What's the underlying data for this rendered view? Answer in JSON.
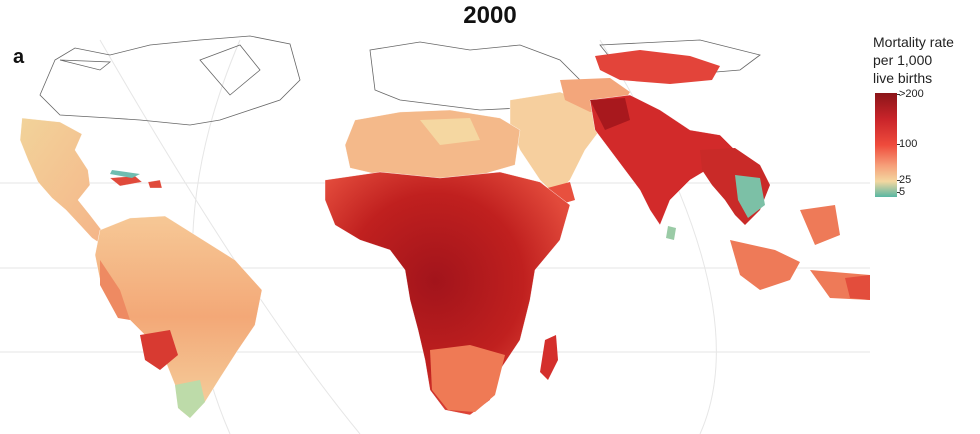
{
  "title": "2000",
  "panel_label": "a",
  "legend": {
    "title_lines": [
      "Mortality rate",
      "per 1,000",
      "live births"
    ],
    "ticks": [
      ">200",
      "100",
      "25",
      "5"
    ],
    "colors": [
      "#8b1519",
      "#c9242a",
      "#ef4b3c",
      "#f6a07a",
      "#f3d7a0",
      "#58b7a3"
    ]
  },
  "map_colors": {
    "africa_high": "#a8161c",
    "africa_mid": "#cf2b2b",
    "north_africa": "#f3b98a",
    "south_asia": "#d22a2a",
    "latin_america": "#f6bf91",
    "southeast_asia": "#ec6a4e",
    "mongolia": "#e3443a",
    "low": "#8fc7a6"
  }
}
